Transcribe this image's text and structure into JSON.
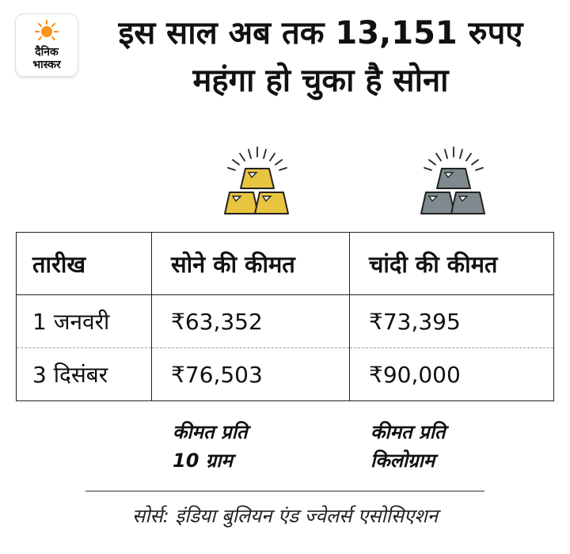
{
  "brand": {
    "line1": "दैनिक",
    "line2": "भास्कर",
    "sun_color": "#f7941d"
  },
  "headline": {
    "line1": "इस साल अब तक 13,151 रुपए",
    "line2": "महंगा हो चुका है सोना"
  },
  "icons": {
    "gold": "gold-bars-icon",
    "silver": "silver-bars-icon",
    "gold_color": "#e8c440",
    "silver_color": "#7f8a8f"
  },
  "table": {
    "headers": [
      "तारीख",
      "सोने की कीमत",
      "चांदी की कीमत"
    ],
    "rows": [
      {
        "date": "1 जनवरी",
        "gold": "₹63,352",
        "silver": "₹73,395"
      },
      {
        "date": "3 दिसंबर",
        "gold": "₹76,503",
        "silver": "₹90,000"
      }
    ]
  },
  "units": {
    "gold_line1": "कीमत प्रति",
    "gold_line2": "10 ग्राम",
    "silver_line1": "कीमत प्रति",
    "silver_line2": "किलोग्राम"
  },
  "source": "सोर्स: इंडिया बुलियन एंड ज्वेलर्स एसोसिएशन"
}
